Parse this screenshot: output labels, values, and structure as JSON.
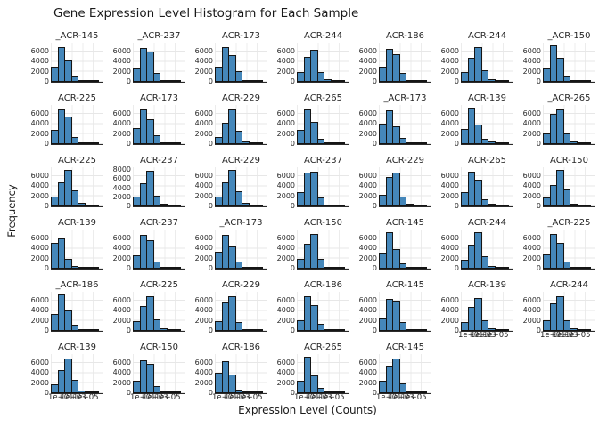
{
  "chart_data": {
    "type": "bar",
    "variant": "histogram-small-multiples",
    "title": "Gene Expression Level Histogram for Each Sample",
    "xlabel": "Expression Level (Counts)",
    "ylabel": "Frequency",
    "x_scale": "log",
    "xtick_labels": [
      "1e+01",
      "1e+03",
      "1e+05"
    ],
    "grid": true,
    "legend": "none",
    "layout": {
      "rows": 6,
      "cols": 7,
      "count": 40
    },
    "bar_color": "#4587ba",
    "bar_edge_color": "#151515",
    "default_yticks": [
      6000,
      4000,
      2000,
      0
    ],
    "subplots": [
      {
        "row": 1,
        "col": 1,
        "title": "_ACR-145",
        "yticks": [
          6000,
          4000,
          2000,
          0
        ],
        "ymax": 7800,
        "bars": [
          3000,
          7000,
          4300,
          1300,
          300,
          100,
          50
        ],
        "show_xticks": false
      },
      {
        "row": 1,
        "col": 2,
        "title": "_ACR-237",
        "yticks": [
          6000,
          4000,
          2000,
          0
        ],
        "ymax": 7800,
        "bars": [
          2600,
          6800,
          6000,
          1700,
          350,
          100,
          50
        ],
        "show_xticks": false
      },
      {
        "row": 1,
        "col": 3,
        "title": "ACR-173",
        "yticks": [
          6000,
          4000,
          2000,
          0
        ],
        "ymax": 7800,
        "bars": [
          3000,
          6900,
          5400,
          2100,
          400,
          100,
          50
        ],
        "show_xticks": false
      },
      {
        "row": 1,
        "col": 4,
        "title": "ACR-244",
        "yticks": [
          6000,
          4000,
          2000,
          0
        ],
        "ymax": 7800,
        "bars": [
          1900,
          4900,
          6400,
          1900,
          450,
          100,
          50
        ],
        "show_xticks": false
      },
      {
        "row": 1,
        "col": 5,
        "title": "ACR-186",
        "yticks": [
          6000,
          4000,
          2000,
          0
        ],
        "ymax": 7800,
        "bars": [
          3000,
          6600,
          5500,
          1800,
          350,
          100,
          50
        ],
        "show_xticks": false
      },
      {
        "row": 1,
        "col": 6,
        "title": "ACR-244",
        "yticks": [
          6000,
          4000,
          2000,
          0
        ],
        "ymax": 7800,
        "bars": [
          2000,
          4800,
          7000,
          2300,
          500,
          120,
          50
        ],
        "show_xticks": false
      },
      {
        "row": 1,
        "col": 7,
        "title": "_ACR-150",
        "yticks": [
          6000,
          4000,
          2000,
          0
        ],
        "ymax": 7800,
        "bars": [
          2700,
          7200,
          4800,
          1300,
          300,
          100,
          50
        ],
        "show_xticks": false
      },
      {
        "row": 2,
        "col": 1,
        "title": "ACR-225",
        "yticks": [
          6000,
          4000,
          2000,
          0
        ],
        "ymax": 7800,
        "bars": [
          2800,
          7000,
          5500,
          1500,
          300,
          100,
          50
        ],
        "show_xticks": false
      },
      {
        "row": 2,
        "col": 2,
        "title": "ACR-173",
        "yticks": [
          6000,
          4000,
          2000,
          0
        ],
        "ymax": 7800,
        "bars": [
          3200,
          7000,
          5000,
          1800,
          400,
          100,
          50
        ],
        "show_xticks": false
      },
      {
        "row": 2,
        "col": 3,
        "title": "ACR-229",
        "yticks": [
          6000,
          4000,
          2000,
          0
        ],
        "ymax": 7800,
        "bars": [
          1500,
          4300,
          7000,
          2600,
          550,
          150,
          50
        ],
        "show_xticks": false
      },
      {
        "row": 2,
        "col": 4,
        "title": "ACR-265",
        "yticks": [
          6000,
          4000,
          2000,
          0
        ],
        "ymax": 7800,
        "bars": [
          2800,
          7000,
          4500,
          1100,
          300,
          100,
          50
        ],
        "show_xticks": false
      },
      {
        "row": 2,
        "col": 5,
        "title": "_ACR-173",
        "yticks": [
          6000,
          4000,
          2000,
          0
        ],
        "ymax": 7800,
        "bars": [
          4000,
          6800,
          3600,
          1200,
          350,
          100,
          50
        ],
        "show_xticks": false
      },
      {
        "row": 2,
        "col": 6,
        "title": "ACR-139",
        "yticks": [
          6000,
          4000,
          2000,
          0
        ],
        "ymax": 7800,
        "bars": [
          3000,
          7200,
          3900,
          1100,
          450,
          150,
          50
        ],
        "show_xticks": false
      },
      {
        "row": 2,
        "col": 7,
        "title": "_ACR-265",
        "yticks": [
          6000,
          4000,
          2000,
          0
        ],
        "ymax": 7800,
        "bars": [
          2200,
          6000,
          6900,
          2200,
          500,
          120,
          50
        ],
        "show_xticks": false
      },
      {
        "row": 3,
        "col": 1,
        "title": "ACR-225",
        "yticks": [
          6000,
          4000,
          2000,
          0
        ],
        "ymax": 7800,
        "bars": [
          2000,
          4800,
          7200,
          3200,
          700,
          150,
          50
        ],
        "show_xticks": false
      },
      {
        "row": 3,
        "col": 2,
        "title": "ACR-237",
        "yticks": [
          8000,
          6000,
          4000,
          2000,
          0
        ],
        "ymax": 8600,
        "bars": [
          2200,
          5000,
          7900,
          2400,
          500,
          120,
          50
        ],
        "show_xticks": false
      },
      {
        "row": 3,
        "col": 3,
        "title": "ACR-229",
        "yticks": [
          6000,
          4000,
          2000,
          0
        ],
        "ymax": 7800,
        "bars": [
          2000,
          4800,
          7200,
          3100,
          800,
          200,
          50
        ],
        "show_xticks": false
      },
      {
        "row": 3,
        "col": 4,
        "title": "ACR-237",
        "yticks": [
          6000,
          4000,
          2000,
          0
        ],
        "ymax": 7800,
        "bars": [
          2800,
          6800,
          7000,
          1800,
          400,
          100,
          50
        ],
        "show_xticks": false
      },
      {
        "row": 3,
        "col": 5,
        "title": "ACR-229",
        "yticks": [
          6000,
          4000,
          2000,
          0
        ],
        "ymax": 7800,
        "bars": [
          2300,
          5800,
          6800,
          2000,
          500,
          120,
          50
        ],
        "show_xticks": false
      },
      {
        "row": 3,
        "col": 6,
        "title": "ACR-265",
        "yticks": [
          6000,
          4000,
          2000,
          0
        ],
        "ymax": 7800,
        "bars": [
          2800,
          7000,
          5400,
          1400,
          450,
          100,
          50
        ],
        "show_xticks": false
      },
      {
        "row": 3,
        "col": 7,
        "title": "ACR-150",
        "yticks": [
          6000,
          4000,
          2000,
          0
        ],
        "ymax": 7800,
        "bars": [
          1700,
          4300,
          7200,
          3300,
          550,
          150,
          50
        ],
        "show_xticks": false
      },
      {
        "row": 4,
        "col": 1,
        "title": "ACR-139",
        "yticks": [
          6000,
          4000,
          2000,
          0
        ],
        "ymax": 7800,
        "bars": [
          5200,
          6000,
          2000,
          500,
          200,
          80,
          40
        ],
        "show_xticks": false
      },
      {
        "row": 4,
        "col": 2,
        "title": "ACR-237",
        "yticks": [
          6000,
          4000,
          2000,
          0
        ],
        "ymax": 7800,
        "bars": [
          2700,
          6700,
          5700,
          1500,
          300,
          100,
          50
        ],
        "show_xticks": false
      },
      {
        "row": 4,
        "col": 3,
        "title": "_ACR-173",
        "yticks": [
          6000,
          4000,
          2000,
          0
        ],
        "ymax": 7800,
        "bars": [
          3300,
          6800,
          4500,
          1500,
          400,
          100,
          50
        ],
        "show_xticks": false
      },
      {
        "row": 4,
        "col": 4,
        "title": "ACR-150",
        "yticks": [
          6000,
          4000,
          2000,
          0
        ],
        "ymax": 7800,
        "bars": [
          2000,
          5000,
          7000,
          2000,
          400,
          100,
          50
        ],
        "show_xticks": false
      },
      {
        "row": 4,
        "col": 5,
        "title": "ACR-145",
        "yticks": [
          6000,
          4000,
          2000,
          0
        ],
        "ymax": 7800,
        "bars": [
          3200,
          7200,
          3900,
          1000,
          300,
          100,
          50
        ],
        "show_xticks": false
      },
      {
        "row": 4,
        "col": 6,
        "title": "ACR-244",
        "yticks": [
          6000,
          4000,
          2000,
          0
        ],
        "ymax": 7800,
        "bars": [
          1800,
          4800,
          7200,
          2500,
          500,
          120,
          50
        ],
        "show_xticks": false
      },
      {
        "row": 4,
        "col": 7,
        "title": "_ACR-225",
        "yticks": [
          6000,
          4000,
          2000,
          0
        ],
        "ymax": 7800,
        "bars": [
          2800,
          6900,
          5200,
          1500,
          300,
          100,
          50
        ],
        "show_xticks": false
      },
      {
        "row": 5,
        "col": 1,
        "title": "_ACR-186",
        "yticks": [
          6000,
          4000,
          2000,
          0
        ],
        "ymax": 7800,
        "bars": [
          3300,
          7200,
          4000,
          1200,
          300,
          100,
          50
        ],
        "show_xticks": false
      },
      {
        "row": 5,
        "col": 2,
        "title": "ACR-225",
        "yticks": [
          6000,
          4000,
          2000,
          0
        ],
        "ymax": 7800,
        "bars": [
          2000,
          5000,
          7000,
          2300,
          500,
          120,
          50
        ],
        "show_xticks": false
      },
      {
        "row": 5,
        "col": 3,
        "title": "ACR-229",
        "yticks": [
          6000,
          4000,
          2000,
          0
        ],
        "ymax": 7800,
        "bars": [
          2000,
          5600,
          7000,
          1800,
          300,
          100,
          50
        ],
        "show_xticks": false
      },
      {
        "row": 5,
        "col": 4,
        "title": "ACR-186",
        "yticks": [
          6000,
          4000,
          2000,
          0
        ],
        "ymax": 7800,
        "bars": [
          2200,
          7000,
          5200,
          1500,
          300,
          100,
          50
        ],
        "show_xticks": false
      },
      {
        "row": 5,
        "col": 5,
        "title": "ACR-145",
        "yticks": [
          6000,
          4000,
          2000,
          0
        ],
        "ymax": 7800,
        "bars": [
          2500,
          6400,
          6000,
          1700,
          400,
          100,
          50
        ],
        "show_xticks": false
      },
      {
        "row": 5,
        "col": 6,
        "title": "ACR-139",
        "yticks": [
          6000,
          4000,
          2000,
          0
        ],
        "ymax": 7800,
        "bars": [
          1700,
          4800,
          6500,
          2200,
          600,
          150,
          50
        ],
        "show_xticks": true
      },
      {
        "row": 5,
        "col": 7,
        "title": "ACR-244",
        "yticks": [
          6000,
          4000,
          2000,
          0
        ],
        "ymax": 7800,
        "bars": [
          2200,
          5500,
          7000,
          2200,
          500,
          120,
          50
        ],
        "show_xticks": true
      },
      {
        "row": 6,
        "col": 1,
        "title": "ACR-139",
        "yticks": [
          6000,
          4000,
          2000,
          0
        ],
        "ymax": 7800,
        "bars": [
          1800,
          4700,
          7000,
          2700,
          600,
          150,
          50
        ],
        "show_xticks": true
      },
      {
        "row": 6,
        "col": 2,
        "title": "ACR-150",
        "yticks": [
          6000,
          4000,
          2000,
          0
        ],
        "ymax": 7800,
        "bars": [
          2500,
          6500,
          5800,
          1500,
          400,
          100,
          50
        ],
        "show_xticks": true
      },
      {
        "row": 6,
        "col": 3,
        "title": "ACR-186",
        "yticks": [
          6000,
          4000,
          2000,
          0
        ],
        "ymax": 7800,
        "bars": [
          4000,
          6300,
          3800,
          800,
          300,
          100,
          50
        ],
        "show_xticks": true
      },
      {
        "row": 6,
        "col": 4,
        "title": "ACR-265",
        "yticks": [
          6000,
          4000,
          2000,
          0
        ],
        "ymax": 7800,
        "bars": [
          2500,
          7200,
          3500,
          1000,
          300,
          100,
          50
        ],
        "show_xticks": true
      },
      {
        "row": 6,
        "col": 5,
        "title": "ACR-145",
        "yticks": [
          6000,
          4000,
          2000,
          0
        ],
        "ymax": 7800,
        "bars": [
          2500,
          5500,
          7000,
          2000,
          400,
          100,
          50
        ],
        "show_xticks": true
      }
    ]
  }
}
